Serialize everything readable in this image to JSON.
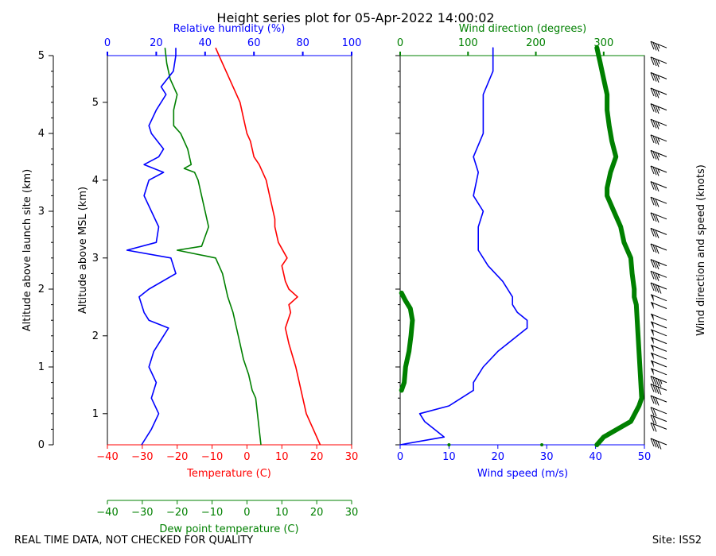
{
  "title": "Height series plot for 05-Apr-2022 14:00:02",
  "footer": {
    "note": "REAL TIME DATA, NOT CHECKED FOR QUALITY",
    "site": "Site: ISS2"
  },
  "colors": {
    "temperature": "#ff0000",
    "dewpoint": "#008000",
    "humidity": "#0000ff",
    "wind_speed": "#0000ff",
    "wind_direction": "#008000",
    "axis": "#000000"
  },
  "chart_data": [
    {
      "type": "line",
      "name": "thermo-panel",
      "ylabel_left": "Altitude above launch site (km)",
      "ylabel_inner": "Altitude above MSL (km)",
      "y_agl_range": [
        0,
        5
      ],
      "y_agl_ticks": [
        "0",
        "1",
        "2",
        "3",
        "4",
        "5"
      ],
      "y_msl_ticks": [
        "1",
        "2",
        "3",
        "4",
        "5"
      ],
      "msl_offset_km": 0.6,
      "temp_axis": {
        "label": "Temperature (C)",
        "range": [
          -40,
          30
        ],
        "ticks": [
          "−40",
          "−30",
          "−20",
          "−10",
          "0",
          "10",
          "20",
          "30"
        ]
      },
      "dew_axis": {
        "label": "Dew point temperature (C)",
        "range": [
          -40,
          30
        ],
        "ticks": [
          "−40",
          "−30",
          "−20",
          "−10",
          "0",
          "10",
          "20",
          "30"
        ]
      },
      "rh_axis": {
        "label": "Relative humidity (%)",
        "range": [
          0,
          100
        ],
        "ticks": [
          "0",
          "20",
          "40",
          "60",
          "80",
          "100"
        ]
      },
      "series": [
        {
          "name": "Temperature",
          "axis": "temp",
          "points": [
            [
              21.0,
              0.0
            ],
            [
              19.0,
              0.2
            ],
            [
              17.0,
              0.4
            ],
            [
              16.0,
              0.6
            ],
            [
              15.5,
              0.7
            ],
            [
              14.0,
              1.0
            ],
            [
              12.0,
              1.3
            ],
            [
              11.0,
              1.5
            ],
            [
              12.5,
              1.7
            ],
            [
              12.0,
              1.8
            ],
            [
              14.5,
              1.9
            ],
            [
              12.0,
              2.0
            ],
            [
              11.0,
              2.1
            ],
            [
              10.0,
              2.3
            ],
            [
              11.5,
              2.4
            ],
            [
              9.0,
              2.6
            ],
            [
              8.0,
              2.8
            ],
            [
              8.0,
              2.9
            ],
            [
              7.5,
              3.0
            ],
            [
              6.5,
              3.2
            ],
            [
              5.5,
              3.4
            ],
            [
              3.5,
              3.6
            ],
            [
              2.0,
              3.7
            ],
            [
              1.0,
              3.9
            ],
            [
              0.0,
              4.0
            ],
            [
              -1.0,
              4.2
            ],
            [
              -2.0,
              4.4
            ],
            [
              -4.0,
              4.6
            ],
            [
              -6.0,
              4.8
            ],
            [
              -8.0,
              5.0
            ],
            [
              -9.0,
              5.1
            ]
          ]
        },
        {
          "name": "Dew point",
          "axis": "dew",
          "points": [
            [
              4.0,
              0.0
            ],
            [
              3.5,
              0.2
            ],
            [
              3.0,
              0.4
            ],
            [
              2.5,
              0.6
            ],
            [
              1.5,
              0.7
            ],
            [
              0.5,
              0.9
            ],
            [
              -1.0,
              1.1
            ],
            [
              -2.0,
              1.3
            ],
            [
              -3.0,
              1.5
            ],
            [
              -4.0,
              1.7
            ],
            [
              -5.5,
              1.9
            ],
            [
              -6.0,
              2.0
            ],
            [
              -7.0,
              2.2
            ],
            [
              -9.0,
              2.4
            ],
            [
              -20.0,
              2.5
            ],
            [
              -13.0,
              2.55
            ],
            [
              -11.0,
              2.8
            ],
            [
              -12.0,
              3.0
            ],
            [
              -13.0,
              3.2
            ],
            [
              -14.0,
              3.4
            ],
            [
              -15.0,
              3.5
            ],
            [
              -18.0,
              3.55
            ],
            [
              -16.0,
              3.6
            ],
            [
              -17.0,
              3.8
            ],
            [
              -19.0,
              4.0
            ],
            [
              -21.0,
              4.1
            ],
            [
              -21.0,
              4.3
            ],
            [
              -20.0,
              4.5
            ],
            [
              -22.0,
              4.7
            ],
            [
              -23.0,
              4.9
            ],
            [
              -23.5,
              5.1
            ]
          ]
        },
        {
          "name": "Relative humidity",
          "axis": "rh",
          "points": [
            [
              14,
              0.0
            ],
            [
              18,
              0.2
            ],
            [
              21,
              0.4
            ],
            [
              18,
              0.6
            ],
            [
              20,
              0.8
            ],
            [
              17,
              1.0
            ],
            [
              19,
              1.2
            ],
            [
              23,
              1.4
            ],
            [
              25,
              1.5
            ],
            [
              17,
              1.6
            ],
            [
              15,
              1.7
            ],
            [
              14,
              1.8
            ],
            [
              13,
              1.9
            ],
            [
              17,
              2.0
            ],
            [
              28,
              2.2
            ],
            [
              26,
              2.4
            ],
            [
              8,
              2.5
            ],
            [
              20,
              2.6
            ],
            [
              21,
              2.8
            ],
            [
              18,
              3.0
            ],
            [
              15,
              3.2
            ],
            [
              16,
              3.3
            ],
            [
              17,
              3.4
            ],
            [
              23,
              3.5
            ],
            [
              15,
              3.6
            ],
            [
              21,
              3.7
            ],
            [
              23,
              3.8
            ],
            [
              18,
              4.0
            ],
            [
              17,
              4.1
            ],
            [
              20,
              4.3
            ],
            [
              24,
              4.5
            ],
            [
              22,
              4.6
            ],
            [
              27,
              4.8
            ],
            [
              28,
              5.0
            ],
            [
              28,
              5.1
            ]
          ]
        }
      ]
    },
    {
      "type": "line",
      "name": "wind-panel",
      "speed_axis": {
        "label": "Wind speed (m/s)",
        "range": [
          0,
          50
        ],
        "ticks": [
          "0",
          "10",
          "20",
          "30",
          "40",
          "50"
        ]
      },
      "dir_axis": {
        "label": "Wind direction (degrees)",
        "range": [
          0,
          360
        ],
        "ticks": [
          "0",
          "100",
          "200",
          "300"
        ]
      },
      "y_range": [
        0,
        5
      ],
      "series": [
        {
          "name": "Wind speed",
          "axis": "speed",
          "points": [
            [
              0,
              0.0
            ],
            [
              9,
              0.1
            ],
            [
              7,
              0.2
            ],
            [
              5,
              0.3
            ],
            [
              4,
              0.4
            ],
            [
              10,
              0.5
            ],
            [
              15,
              0.7
            ],
            [
              15,
              0.8
            ],
            [
              17,
              1.0
            ],
            [
              20,
              1.2
            ],
            [
              24,
              1.4
            ],
            [
              26,
              1.5
            ],
            [
              26,
              1.6
            ],
            [
              24,
              1.7
            ],
            [
              23,
              1.8
            ],
            [
              23,
              1.9
            ],
            [
              21,
              2.1
            ],
            [
              18,
              2.3
            ],
            [
              16,
              2.5
            ],
            [
              16,
              2.8
            ],
            [
              17,
              3.0
            ],
            [
              15,
              3.2
            ],
            [
              16,
              3.5
            ],
            [
              15,
              3.7
            ],
            [
              17,
              4.0
            ],
            [
              17,
              4.2
            ],
            [
              17,
              4.5
            ],
            [
              19,
              4.8
            ],
            [
              19,
              5.0
            ],
            [
              19,
              5.1
            ]
          ]
        },
        {
          "name": "Wind direction (low)",
          "axis": "dir",
          "points": [
            [
              2,
              0.7
            ],
            [
              6,
              0.8
            ],
            [
              8,
              1.0
            ],
            [
              13,
              1.2
            ],
            [
              16,
              1.4
            ],
            [
              18,
              1.6
            ],
            [
              15,
              1.75
            ],
            [
              8,
              1.85
            ],
            [
              2,
              1.95
            ]
          ]
        },
        {
          "name": "Wind direction (high)",
          "axis": "dir",
          "points": [
            [
              290,
              0.0
            ],
            [
              300,
              0.1
            ],
            [
              320,
              0.2
            ],
            [
              340,
              0.3
            ],
            [
              352,
              0.5
            ],
            [
              356,
              0.6
            ],
            [
              348,
              1.8
            ],
            [
              345,
              1.9
            ],
            [
              345,
              2.0
            ],
            [
              342,
              2.2
            ],
            [
              340,
              2.4
            ],
            [
              330,
              2.6
            ],
            [
              325,
              2.8
            ],
            [
              315,
              3.0
            ],
            [
              305,
              3.2
            ],
            [
              305,
              3.3
            ],
            [
              310,
              3.5
            ],
            [
              318,
              3.7
            ],
            [
              312,
              3.9
            ],
            [
              308,
              4.1
            ],
            [
              305,
              4.3
            ],
            [
              305,
              4.5
            ],
            [
              300,
              4.7
            ],
            [
              295,
              4.9
            ],
            [
              290,
              5.1
            ]
          ]
        }
      ],
      "stray_points": [
        [
          10,
          0.0
        ],
        [
          29,
          0.0
        ]
      ]
    },
    {
      "type": "other",
      "name": "wind-barbs",
      "label": "Wind direction and speed (knots)",
      "barbs": [
        [
          0.0,
          40
        ],
        [
          0.2,
          20
        ],
        [
          0.3,
          20
        ],
        [
          0.4,
          20
        ],
        [
          0.55,
          30
        ],
        [
          0.7,
          40
        ],
        [
          0.8,
          45
        ],
        [
          0.9,
          50
        ],
        [
          1.0,
          50
        ],
        [
          1.1,
          50
        ],
        [
          1.2,
          50
        ],
        [
          1.3,
          50
        ],
        [
          1.4,
          50
        ],
        [
          1.5,
          50
        ],
        [
          1.6,
          50
        ],
        [
          1.75,
          50
        ],
        [
          1.85,
          50
        ],
        [
          2.0,
          40
        ],
        [
          2.15,
          35
        ],
        [
          2.3,
          35
        ],
        [
          2.5,
          30
        ],
        [
          2.7,
          30
        ],
        [
          2.9,
          30
        ],
        [
          3.1,
          30
        ],
        [
          3.3,
          30
        ],
        [
          3.5,
          35
        ],
        [
          3.7,
          35
        ],
        [
          3.9,
          35
        ],
        [
          4.1,
          35
        ],
        [
          4.3,
          35
        ],
        [
          4.5,
          35
        ],
        [
          4.7,
          35
        ],
        [
          4.9,
          35
        ],
        [
          5.1,
          35
        ]
      ]
    }
  ]
}
